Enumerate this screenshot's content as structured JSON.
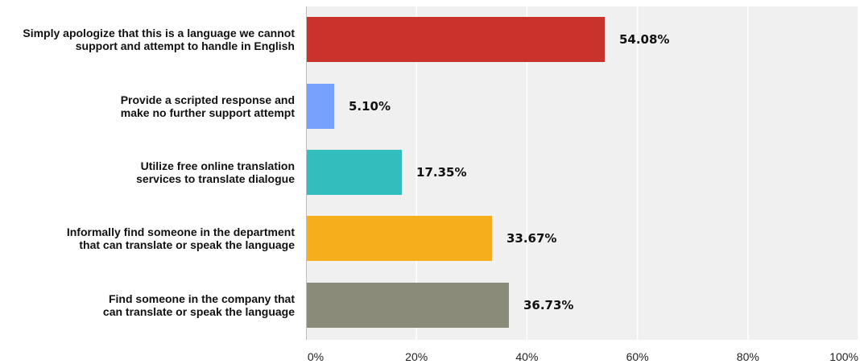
{
  "chart_data": {
    "type": "bar",
    "orientation": "horizontal",
    "categories": [
      "Simply apologize that this is a language we cannot support and attempt to handle in English",
      "Provide a scripted response and make no further support attempt",
      "Utilize free online translation services to translate dialogue",
      "Informally find someone in the department that can translate or speak the language",
      "Find someone in the company that can translate or speak the language"
    ],
    "category_lines": [
      [
        "Simply apologize that this is a language we cannot",
        "support and attempt to handle in English"
      ],
      [
        "Provide a scripted response and",
        "make no further support attempt"
      ],
      [
        "Utilize free online translation",
        "services to translate dialogue"
      ],
      [
        "Informally find someone in the department",
        "that can translate or speak the language"
      ],
      [
        "Find someone in the company that",
        "can translate or speak the language"
      ]
    ],
    "values": [
      54.08,
      5.1,
      17.35,
      33.67,
      36.73
    ],
    "data_labels": [
      "54.08%",
      "5.10%",
      "17.35%",
      "33.67%",
      "36.73%"
    ],
    "colors": [
      "#c9332c",
      "#76a1fd",
      "#33bdbd",
      "#f6ae1d",
      "#8a8b79"
    ],
    "xlim": [
      0,
      100
    ],
    "x_ticks": [
      0,
      20,
      40,
      60,
      80,
      100
    ],
    "x_tick_labels": [
      "0%",
      "20%",
      "40%",
      "60%",
      "80%",
      "100%"
    ],
    "grid": true,
    "background_color": "#f0f0f0",
    "gridline_color": "#ffffff",
    "title": "",
    "xlabel": "",
    "ylabel": ""
  }
}
